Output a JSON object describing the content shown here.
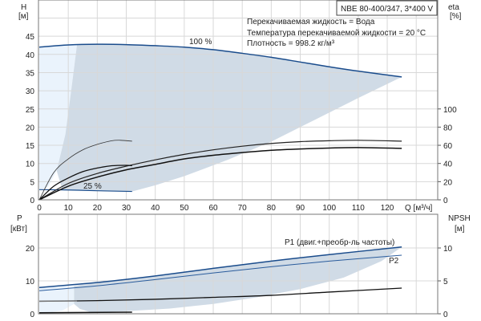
{
  "chart_data": [
    {
      "type": "line",
      "title": "NBE 80-400/347, 3*400 V",
      "info": [
        "Перекачиваемая жидкость = Вода",
        "Температура перекачиваемой жидкости = 20 °C",
        "Плотность = 998.2 кг/м³"
      ],
      "xlabel": "Q [м³/ч]",
      "ylabel": "H",
      "yunit": "[м]",
      "y2label": "eta",
      "y2unit": "[%]",
      "xlim": [
        0,
        130
      ],
      "ylim": [
        0,
        55
      ],
      "y2lim": [
        0,
        220
      ],
      "xticks": [
        "0",
        "10",
        "20",
        "30",
        "40",
        "50",
        "60",
        "70",
        "80",
        "90",
        "100",
        "110",
        "120"
      ],
      "yticks": [
        "0",
        "5",
        "10",
        "15",
        "20",
        "25",
        "30",
        "35",
        "40",
        "45"
      ],
      "y2ticks": [
        "0",
        "20",
        "40",
        "60",
        "80",
        "100"
      ],
      "grid": true,
      "annotations": [
        "100 %",
        "25 %"
      ],
      "series": [
        {
          "name": "H 100 %",
          "axis": "H",
          "x": [
            0,
            10,
            20,
            30,
            40,
            50,
            60,
            70,
            80,
            90,
            100,
            110,
            125
          ],
          "y": [
            42,
            42.6,
            42.8,
            42.7,
            42.4,
            42,
            41.3,
            40.3,
            39.2,
            37.9,
            36.6,
            35.4,
            33.8
          ]
        },
        {
          "name": "H 25 %",
          "axis": "H",
          "x": [
            0,
            10,
            20,
            32
          ],
          "y": [
            2.8,
            2.7,
            2.5,
            2.3
          ]
        },
        {
          "name": "eta pump 100 %",
          "axis": "eta",
          "x": [
            0,
            10,
            20,
            30,
            40,
            50,
            60,
            70,
            80,
            90,
            100,
            110,
            125
          ],
          "y": [
            0,
            18,
            29,
            37,
            44,
            50,
            55,
            59,
            62,
            64,
            65,
            65.5,
            64.6
          ]
        },
        {
          "name": "eta total 100 %",
          "axis": "eta",
          "x": [
            0,
            10,
            20,
            30,
            40,
            50,
            60,
            70,
            80,
            90,
            100,
            110,
            125
          ],
          "y": [
            0,
            15,
            25,
            33,
            39,
            45,
            49,
            52,
            54.5,
            56,
            57,
            57.5,
            56.6
          ]
        },
        {
          "name": "eta pump 25 %",
          "axis": "eta",
          "x": [
            0,
            5,
            10,
            15,
            20,
            25,
            28,
            32
          ],
          "y": [
            0,
            30,
            45,
            55,
            61,
            65,
            65.5,
            64.5
          ]
        },
        {
          "name": "eta total 25 %",
          "axis": "eta",
          "x": [
            0,
            5,
            10,
            15,
            20,
            25,
            30,
            32
          ],
          "y": [
            0,
            15,
            24,
            31,
            35,
            37.5,
            38,
            37.5
          ]
        }
      ]
    },
    {
      "type": "line",
      "ylabel": "P",
      "yunit": "[кВт]",
      "y2label": "NPSH",
      "y2unit": "[м]",
      "xlim": [
        0,
        130
      ],
      "ylim": [
        0,
        30
      ],
      "y2lim": [
        0,
        15
      ],
      "yticks": [
        "0",
        "10",
        "20"
      ],
      "y2ticks": [
        "0",
        "5",
        "10"
      ],
      "grid": true,
      "series": [
        {
          "name": "P1 (двиг.+преобр-ль частоты)",
          "axis": "P",
          "x": [
            0,
            20,
            40,
            60,
            80,
            100,
            125
          ],
          "y": [
            8,
            9.5,
            11.5,
            13.8,
            16,
            18,
            20.3
          ]
        },
        {
          "name": "P2",
          "axis": "P",
          "x": [
            0,
            20,
            40,
            60,
            80,
            100,
            125
          ],
          "y": [
            7,
            8.5,
            10.4,
            12.4,
            14.3,
            16,
            17.8
          ]
        },
        {
          "name": "P 25 %",
          "axis": "P",
          "x": [
            0,
            32
          ],
          "y": [
            0.3,
            0.5
          ]
        },
        {
          "name": "NPSH",
          "axis": "NPSH",
          "x": [
            0,
            20,
            40,
            60,
            80,
            100,
            125
          ],
          "y": [
            1.9,
            2,
            2.2,
            2.5,
            2.8,
            3.3,
            3.9
          ]
        }
      ]
    }
  ]
}
